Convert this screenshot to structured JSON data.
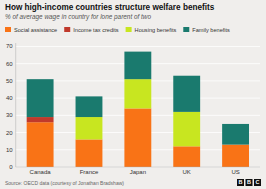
{
  "chart_data": {
    "type": "bar",
    "stacked": true,
    "title": "How high-income countries structure welfare benefits",
    "subtitle": "% of average wage in country for lone parent of two",
    "annotations": [
      "Source: OECD data (courtesy of Jonathan Bradshaw)",
      "BBC"
    ],
    "categories": [
      "Canada",
      "France",
      "Japan",
      "UK",
      "US"
    ],
    "series": [
      {
        "name": "Social assistance",
        "color": "#f97316",
        "values": [
          26,
          16,
          34,
          12,
          13
        ]
      },
      {
        "name": "Income tax credits",
        "color": "#c0392b",
        "values": [
          3,
          0,
          0,
          0,
          0
        ]
      },
      {
        "name": "Housing benefits",
        "color": "#c8e620",
        "values": [
          0,
          13,
          17,
          20,
          0
        ]
      },
      {
        "name": "Family benefits",
        "color": "#1a7a6e",
        "values": [
          22,
          12,
          16,
          21,
          12
        ]
      }
    ],
    "ylim": [
      0,
      72
    ],
    "yticks": [
      0,
      10,
      20,
      30,
      40,
      50,
      60,
      70
    ],
    "grid": true,
    "legend": "top-left"
  }
}
